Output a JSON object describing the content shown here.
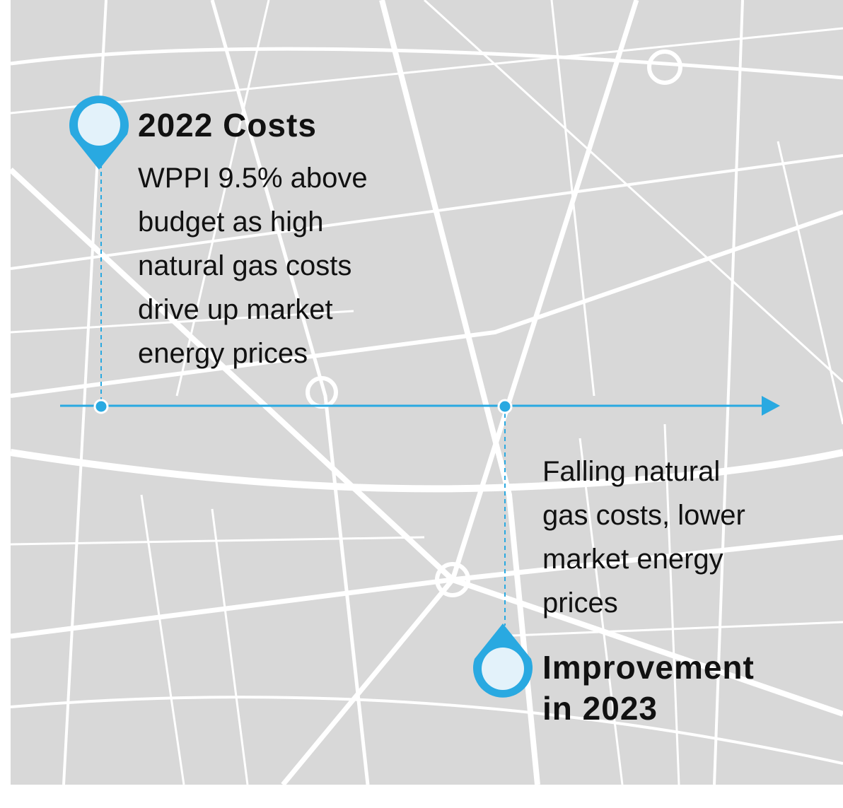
{
  "events": [
    {
      "title": [
        "2022 Costs"
      ],
      "body": [
        "WPPI 9.5% above",
        "budget as high",
        "natural gas costs",
        "drive up market",
        "energy prices"
      ]
    },
    {
      "title": [
        "Improvement",
        "in 2023"
      ],
      "body": [
        "Falling natural",
        "gas costs, lower",
        "market energy",
        "prices"
      ]
    }
  ]
}
